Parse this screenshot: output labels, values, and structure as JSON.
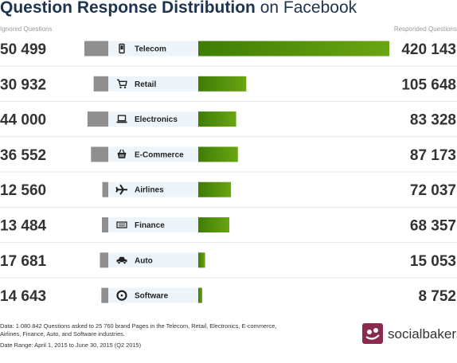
{
  "title": {
    "bold": "Question Response Distribution",
    "light": "on Facebook"
  },
  "columns": {
    "left": "Ignored Questions",
    "right": "Responded Questions"
  },
  "colors": {
    "ignored": "#8f8f8f",
    "responded": "#6aa512",
    "responded_dark": "#3e7d05",
    "label_bg": "#eef5fa",
    "divider": "#e6e6e6"
  },
  "chart_data": {
    "type": "bar",
    "categories": [
      "Telecom",
      "Retail",
      "Electronics",
      "E-Commerce",
      "Airlines",
      "Finance",
      "Auto",
      "Software"
    ],
    "icons": [
      "phone-icon",
      "cart-icon",
      "laptop-icon",
      "basket-icon",
      "plane-icon",
      "finance-icon",
      "car-icon",
      "disc-icon"
    ],
    "series": [
      {
        "name": "Ignored Questions",
        "values": [
          50499,
          30932,
          44000,
          36552,
          12560,
          13484,
          17681,
          14643
        ],
        "labels": [
          "50 499",
          "30 932",
          "44 000",
          "36 552",
          "12 560",
          "13 484",
          "17 681",
          "14 643"
        ]
      },
      {
        "name": "Responded Questions",
        "values": [
          420143,
          105648,
          83328,
          87173,
          72037,
          68357,
          15053,
          8752
        ],
        "labels": [
          "420 143",
          "105 648",
          "83 328",
          "87 173",
          "72 037",
          "68 357",
          "15 053",
          "8 752"
        ]
      }
    ]
  },
  "footer": {
    "data_note": "Data: 1 080 842 Questions asked to 25 760 brand Pages in the Telecom, Retail, Electronics, E-commerce, Airlines, Finance, Auto, and Software industries.",
    "date_range": "Date Range: April 1, 2015 to June 30, 2015 (Q2 2015)"
  },
  "brand": {
    "name": "socialbakers"
  }
}
